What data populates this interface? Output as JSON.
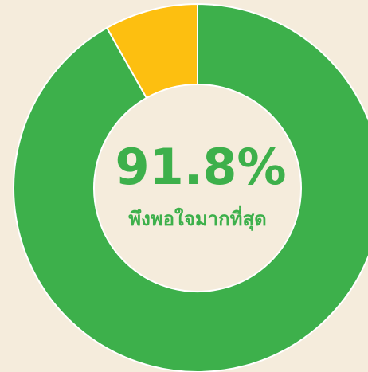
{
  "chart_data": {
    "type": "donut",
    "categories": [
      "พึงพอใจมากที่สุด",
      null
    ],
    "values": [
      91.8,
      8.2
    ],
    "value_labels": [
      "91.8%",
      null
    ],
    "colors": [
      "#3db04b",
      "#fdbf10"
    ]
  }
}
